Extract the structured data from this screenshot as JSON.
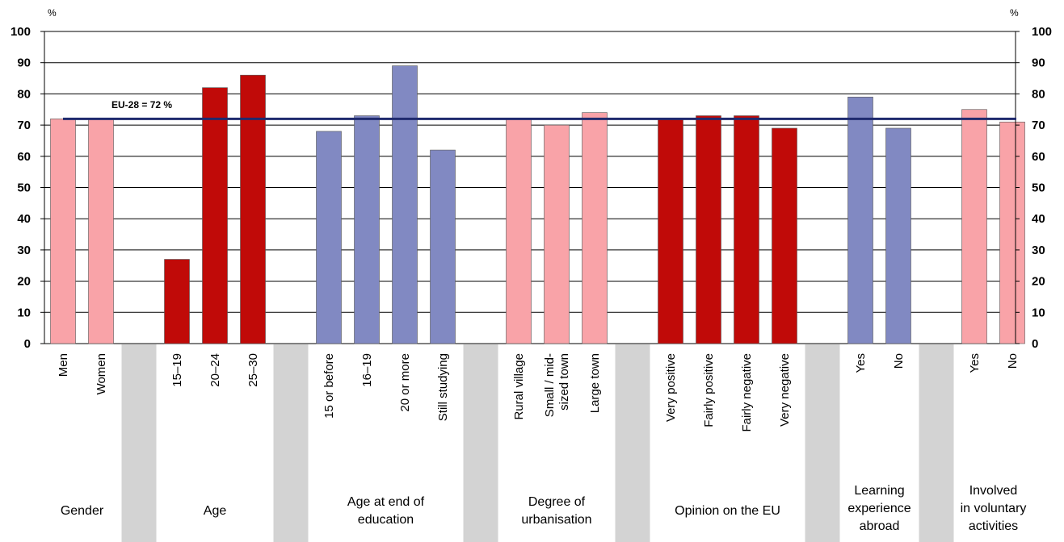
{
  "chart_data": {
    "type": "bar",
    "y_unit": "%",
    "ylim": [
      0,
      100
    ],
    "yticks": [
      "0",
      "10",
      "20",
      "30",
      "40",
      "50",
      "60",
      "70",
      "80",
      "90",
      "100"
    ],
    "grid": true,
    "reference_line": {
      "label": "EU-28 = 72 %",
      "value": 72,
      "color": "#1f2a6e"
    },
    "groups": [
      {
        "label": [
          "Gender"
        ],
        "color": "#f9a3a8",
        "bars": [
          {
            "category": [
              "Men"
            ],
            "value": 72
          },
          {
            "category": [
              "Women"
            ],
            "value": 72
          }
        ]
      },
      {
        "label": [
          "Age"
        ],
        "color": "#c00a08",
        "bars": [
          {
            "category": [
              "15–19"
            ],
            "value": 27
          },
          {
            "category": [
              "20–24"
            ],
            "value": 82
          },
          {
            "category": [
              "25–30"
            ],
            "value": 86
          }
        ]
      },
      {
        "label": [
          "Age at end of",
          "education"
        ],
        "color": "#8189c2",
        "bars": [
          {
            "category": [
              "15 or before"
            ],
            "value": 68
          },
          {
            "category": [
              "16–19"
            ],
            "value": 73
          },
          {
            "category": [
              "20 or more"
            ],
            "value": 89
          },
          {
            "category": [
              "Still studying"
            ],
            "value": 62
          }
        ]
      },
      {
        "label": [
          "Degree of",
          "urbanisation"
        ],
        "color": "#f9a3a8",
        "bars": [
          {
            "category": [
              "Rural village"
            ],
            "value": 72
          },
          {
            "category": [
              "Small / mid-",
              "sized town"
            ],
            "value": 70
          },
          {
            "category": [
              "Large town"
            ],
            "value": 74
          }
        ]
      },
      {
        "label": [
          "Opinion on the EU"
        ],
        "color": "#c00a08",
        "bars": [
          {
            "category": [
              "Very positive"
            ],
            "value": 72
          },
          {
            "category": [
              "Fairly positive"
            ],
            "value": 73
          },
          {
            "category": [
              "Fairly negative"
            ],
            "value": 73
          },
          {
            "category": [
              "Very negative"
            ],
            "value": 69
          }
        ]
      },
      {
        "label": [
          "Learning",
          "experience",
          "abroad"
        ],
        "color": "#8189c2",
        "bars": [
          {
            "category": [
              "Yes"
            ],
            "value": 79
          },
          {
            "category": [
              "No"
            ],
            "value": 69
          }
        ]
      },
      {
        "label": [
          "Involved",
          "in voluntary",
          "activities"
        ],
        "color": "#f9a3a8",
        "bars": [
          {
            "category": [
              "Yes"
            ],
            "value": 75
          },
          {
            "category": [
              "No"
            ],
            "value": 71
          }
        ]
      }
    ]
  }
}
